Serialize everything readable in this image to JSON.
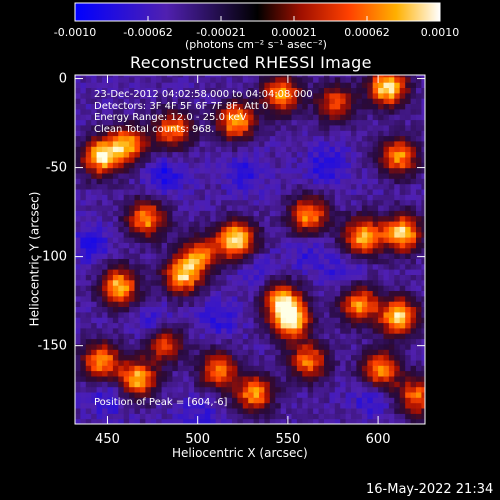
{
  "colorbar": {
    "ticks": [
      "-0.0010",
      "-0.00062",
      "-0.00021",
      "0.00021",
      "0.00062",
      "0.0010"
    ],
    "units": "(photons cm⁻² s⁻¹ asec⁻²)"
  },
  "chart_data": {
    "type": "heatmap",
    "title": "Reconstructed RHESSI Image",
    "xlabel": "Heliocentric X (arcsec)",
    "ylabel": "Heliocentric Y (arcsec)",
    "xlim": [
      432,
      626
    ],
    "ylim": [
      -194,
      2
    ],
    "xticks": [
      "450",
      "500",
      "550",
      "600"
    ],
    "yticks": [
      "0",
      "-50",
      "-100",
      "-150"
    ],
    "color_range": [
      -0.001,
      0.001
    ],
    "annotation_lines": [
      "23-Dec-2012 04:02:58.000 to 04:04:08.000",
      "Detectors: 3F 4F 5F 6F 7F 8F, Att 0",
      "Energy Range: 12.0 - 25.0 keV",
      "Clean     Total counts: 968."
    ],
    "peak_label": "Position of Peak = [604,-6]",
    "hot_spots": [
      {
        "x": 445,
        "y": -45,
        "v": 0.0009
      },
      {
        "x": 460,
        "y": -38,
        "v": 0.0007
      },
      {
        "x": 485,
        "y": -30,
        "v": 0.0006
      },
      {
        "x": 520,
        "y": -25,
        "v": 0.0008
      },
      {
        "x": 545,
        "y": -10,
        "v": 0.0007
      },
      {
        "x": 575,
        "y": -15,
        "v": 0.0005
      },
      {
        "x": 604,
        "y": -6,
        "v": 0.001
      },
      {
        "x": 610,
        "y": -45,
        "v": 0.0007
      },
      {
        "x": 470,
        "y": -80,
        "v": 0.0007
      },
      {
        "x": 500,
        "y": -100,
        "v": 0.0005
      },
      {
        "x": 520,
        "y": -92,
        "v": 0.001
      },
      {
        "x": 560,
        "y": -78,
        "v": 0.0007
      },
      {
        "x": 590,
        "y": -90,
        "v": 0.0008
      },
      {
        "x": 612,
        "y": -88,
        "v": 0.0009
      },
      {
        "x": 455,
        "y": -118,
        "v": 0.0008
      },
      {
        "x": 490,
        "y": -112,
        "v": 0.0008
      },
      {
        "x": 545,
        "y": -125,
        "v": 0.0006
      },
      {
        "x": 550,
        "y": -137,
        "v": 0.001
      },
      {
        "x": 588,
        "y": -128,
        "v": 0.0007
      },
      {
        "x": 610,
        "y": -135,
        "v": 0.0009
      },
      {
        "x": 445,
        "y": -160,
        "v": 0.0007
      },
      {
        "x": 465,
        "y": -170,
        "v": 0.0008
      },
      {
        "x": 510,
        "y": -165,
        "v": 0.0006
      },
      {
        "x": 530,
        "y": -178,
        "v": 0.0007
      },
      {
        "x": 560,
        "y": -160,
        "v": 0.0006
      },
      {
        "x": 600,
        "y": -165,
        "v": 0.0007
      },
      {
        "x": 620,
        "y": -180,
        "v": 0.0006
      },
      {
        "x": 480,
        "y": -150,
        "v": 0.0005
      }
    ],
    "cold_spots": [
      {
        "x": 480,
        "y": -55,
        "v": -0.0006
      },
      {
        "x": 525,
        "y": -55,
        "v": -0.0005
      },
      {
        "x": 570,
        "y": -50,
        "v": -0.0006
      },
      {
        "x": 440,
        "y": -95,
        "v": -0.0005
      },
      {
        "x": 530,
        "y": -110,
        "v": -0.0004
      },
      {
        "x": 475,
        "y": -140,
        "v": -0.0006
      },
      {
        "x": 510,
        "y": -135,
        "v": -0.0005
      },
      {
        "x": 580,
        "y": -110,
        "v": -0.0005
      },
      {
        "x": 595,
        "y": -180,
        "v": -0.0005
      },
      {
        "x": 450,
        "y": -180,
        "v": -0.0005
      },
      {
        "x": 560,
        "y": -100,
        "v": -0.0004
      },
      {
        "x": 500,
        "y": -190,
        "v": -0.0004
      }
    ]
  },
  "footer": "16-May-2022 21:34"
}
